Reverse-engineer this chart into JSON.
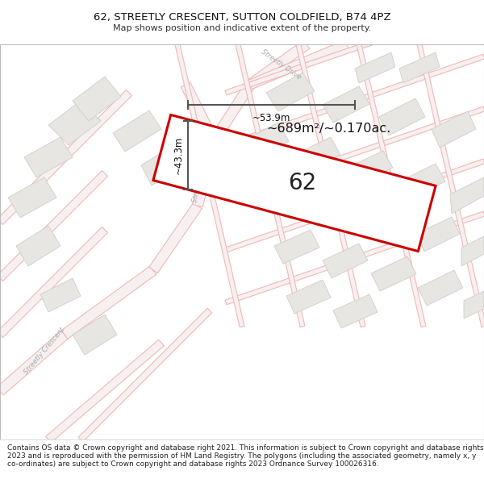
{
  "title": "62, STREETLY CRESCENT, SUTTON COLDFIELD, B74 4PZ",
  "subtitle": "Map shows position and indicative extent of the property.",
  "area_label": "~689m²/~0.170ac.",
  "property_number": "62",
  "dim_horizontal": "~53.9m",
  "dim_vertical": "~43.3m",
  "footer": "Contains OS data © Crown copyright and database right 2021. This information is subject to Crown copyright and database rights 2023 and is reproduced with the permission of HM Land Registry. The polygons (including the associated geometry, namely x, y co-ordinates) are subject to Crown copyright and database rights 2023 Ordnance Survey 100026316.",
  "map_bg": "#f7f6f4",
  "road_line_color": "#f0b8b8",
  "road_fill_color": "#f7f0f0",
  "building_fill": "#e8e6e3",
  "building_edge": "#d0ceca",
  "property_fill": "#ffffff",
  "property_edge": "#cc0000",
  "dim_color": "#555555",
  "title_bg": "#ffffff",
  "footer_bg": "#ffffff",
  "street1": "Streetly Crescent",
  "street2": "Streetly Drive"
}
